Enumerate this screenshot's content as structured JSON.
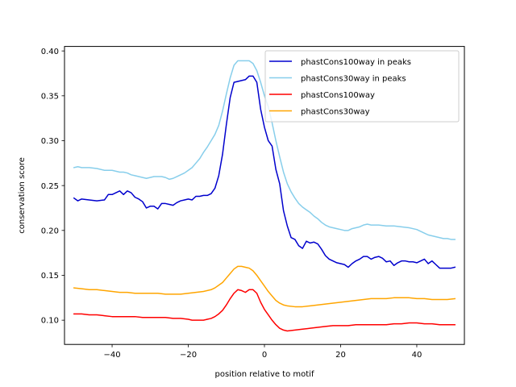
{
  "chart_data": {
    "type": "line",
    "title": "",
    "xlabel": "position relative to motif",
    "ylabel": "conservation score",
    "xlim": [
      -52.5,
      52.5
    ],
    "ylim": [
      0.073,
      0.405
    ],
    "xticks": [
      -40,
      -20,
      0,
      20,
      40
    ],
    "yticks": [
      0.1,
      0.15,
      0.2,
      0.25,
      0.3,
      0.35,
      0.4
    ],
    "xtick_labels": [
      "−40",
      "−20",
      "0",
      "20",
      "40"
    ],
    "ytick_labels": [
      "0.10",
      "0.15",
      "0.20",
      "0.25",
      "0.30",
      "0.35",
      "0.40"
    ],
    "legend_position": "top-right",
    "series": [
      {
        "name": "phastCons100way in peaks",
        "color": "#0000cd",
        "points": [
          [
            -50,
            0.236
          ],
          [
            -49,
            0.233
          ],
          [
            -48,
            0.235
          ],
          [
            -46,
            0.234
          ],
          [
            -44,
            0.233
          ],
          [
            -42,
            0.234
          ],
          [
            -41,
            0.24
          ],
          [
            -40,
            0.24
          ],
          [
            -39,
            0.242
          ],
          [
            -38,
            0.244
          ],
          [
            -37,
            0.24
          ],
          [
            -36,
            0.244
          ],
          [
            -35,
            0.242
          ],
          [
            -34,
            0.237
          ],
          [
            -33,
            0.235
          ],
          [
            -32,
            0.232
          ],
          [
            -31,
            0.225
          ],
          [
            -30,
            0.227
          ],
          [
            -29,
            0.227
          ],
          [
            -28,
            0.224
          ],
          [
            -27,
            0.23
          ],
          [
            -26,
            0.23
          ],
          [
            -25,
            0.229
          ],
          [
            -24,
            0.228
          ],
          [
            -23,
            0.231
          ],
          [
            -22,
            0.233
          ],
          [
            -21,
            0.234
          ],
          [
            -20,
            0.235
          ],
          [
            -19,
            0.234
          ],
          [
            -18,
            0.238
          ],
          [
            -17,
            0.238
          ],
          [
            -16,
            0.239
          ],
          [
            -15,
            0.239
          ],
          [
            -14,
            0.241
          ],
          [
            -13,
            0.247
          ],
          [
            -12,
            0.261
          ],
          [
            -11,
            0.285
          ],
          [
            -10,
            0.318
          ],
          [
            -9,
            0.348
          ],
          [
            -8,
            0.365
          ],
          [
            -7,
            0.366
          ],
          [
            -6,
            0.367
          ],
          [
            -5,
            0.368
          ],
          [
            -4,
            0.372
          ],
          [
            -3,
            0.372
          ],
          [
            -2,
            0.365
          ],
          [
            -1,
            0.335
          ],
          [
            0,
            0.315
          ],
          [
            1,
            0.3
          ],
          [
            2,
            0.294
          ],
          [
            3,
            0.268
          ],
          [
            4,
            0.252
          ],
          [
            5,
            0.222
          ],
          [
            6,
            0.205
          ],
          [
            7,
            0.192
          ],
          [
            8,
            0.19
          ],
          [
            9,
            0.183
          ],
          [
            10,
            0.18
          ],
          [
            11,
            0.188
          ],
          [
            12,
            0.186
          ],
          [
            13,
            0.187
          ],
          [
            14,
            0.185
          ],
          [
            15,
            0.179
          ],
          [
            16,
            0.172
          ],
          [
            17,
            0.168
          ],
          [
            18,
            0.166
          ],
          [
            19,
            0.164
          ],
          [
            20,
            0.163
          ],
          [
            21,
            0.162
          ],
          [
            22,
            0.159
          ],
          [
            23,
            0.163
          ],
          [
            24,
            0.166
          ],
          [
            25,
            0.168
          ],
          [
            26,
            0.171
          ],
          [
            27,
            0.171
          ],
          [
            28,
            0.168
          ],
          [
            29,
            0.17
          ],
          [
            30,
            0.171
          ],
          [
            31,
            0.169
          ],
          [
            32,
            0.165
          ],
          [
            33,
            0.166
          ],
          [
            34,
            0.161
          ],
          [
            35,
            0.164
          ],
          [
            36,
            0.166
          ],
          [
            37,
            0.166
          ],
          [
            38,
            0.165
          ],
          [
            39,
            0.165
          ],
          [
            40,
            0.164
          ],
          [
            41,
            0.166
          ],
          [
            42,
            0.168
          ],
          [
            43,
            0.163
          ],
          [
            44,
            0.166
          ],
          [
            45,
            0.162
          ],
          [
            46,
            0.158
          ],
          [
            47,
            0.158
          ],
          [
            48,
            0.158
          ],
          [
            49,
            0.158
          ],
          [
            50,
            0.159
          ]
        ]
      },
      {
        "name": "phastCons30way in peaks",
        "color": "#87ceeb",
        "points": [
          [
            -50,
            0.27
          ],
          [
            -49,
            0.271
          ],
          [
            -48,
            0.27
          ],
          [
            -46,
            0.27
          ],
          [
            -44,
            0.269
          ],
          [
            -42,
            0.267
          ],
          [
            -40,
            0.267
          ],
          [
            -39,
            0.266
          ],
          [
            -38,
            0.265
          ],
          [
            -37,
            0.265
          ],
          [
            -36,
            0.264
          ],
          [
            -35,
            0.262
          ],
          [
            -34,
            0.261
          ],
          [
            -33,
            0.26
          ],
          [
            -32,
            0.259
          ],
          [
            -31,
            0.258
          ],
          [
            -30,
            0.259
          ],
          [
            -29,
            0.26
          ],
          [
            -28,
            0.26
          ],
          [
            -27,
            0.26
          ],
          [
            -26,
            0.259
          ],
          [
            -25,
            0.257
          ],
          [
            -24,
            0.258
          ],
          [
            -23,
            0.26
          ],
          [
            -22,
            0.262
          ],
          [
            -21,
            0.264
          ],
          [
            -20,
            0.267
          ],
          [
            -19,
            0.27
          ],
          [
            -18,
            0.275
          ],
          [
            -17,
            0.28
          ],
          [
            -16,
            0.287
          ],
          [
            -15,
            0.293
          ],
          [
            -14,
            0.3
          ],
          [
            -13,
            0.307
          ],
          [
            -12,
            0.317
          ],
          [
            -11,
            0.333
          ],
          [
            -10,
            0.352
          ],
          [
            -9,
            0.37
          ],
          [
            -8,
            0.384
          ],
          [
            -7,
            0.389
          ],
          [
            -6,
            0.389
          ],
          [
            -5,
            0.389
          ],
          [
            -4,
            0.389
          ],
          [
            -3,
            0.386
          ],
          [
            -2,
            0.378
          ],
          [
            -1,
            0.365
          ],
          [
            0,
            0.35
          ],
          [
            1,
            0.338
          ],
          [
            2,
            0.32
          ],
          [
            3,
            0.3
          ],
          [
            4,
            0.282
          ],
          [
            5,
            0.265
          ],
          [
            6,
            0.252
          ],
          [
            7,
            0.243
          ],
          [
            8,
            0.236
          ],
          [
            9,
            0.23
          ],
          [
            10,
            0.226
          ],
          [
            11,
            0.223
          ],
          [
            12,
            0.22
          ],
          [
            13,
            0.216
          ],
          [
            14,
            0.213
          ],
          [
            15,
            0.209
          ],
          [
            16,
            0.206
          ],
          [
            17,
            0.204
          ],
          [
            18,
            0.203
          ],
          [
            19,
            0.202
          ],
          [
            20,
            0.201
          ],
          [
            21,
            0.2
          ],
          [
            22,
            0.2
          ],
          [
            23,
            0.202
          ],
          [
            24,
            0.203
          ],
          [
            25,
            0.204
          ],
          [
            26,
            0.206
          ],
          [
            27,
            0.207
          ],
          [
            28,
            0.206
          ],
          [
            30,
            0.206
          ],
          [
            32,
            0.205
          ],
          [
            34,
            0.205
          ],
          [
            36,
            0.204
          ],
          [
            38,
            0.203
          ],
          [
            40,
            0.201
          ],
          [
            41,
            0.199
          ],
          [
            42,
            0.197
          ],
          [
            43,
            0.195
          ],
          [
            44,
            0.194
          ],
          [
            45,
            0.193
          ],
          [
            46,
            0.192
          ],
          [
            47,
            0.191
          ],
          [
            48,
            0.191
          ],
          [
            49,
            0.19
          ],
          [
            50,
            0.19
          ]
        ]
      },
      {
        "name": "phastCons100way",
        "color": "#ff0000",
        "points": [
          [
            -50,
            0.107
          ],
          [
            -48,
            0.107
          ],
          [
            -46,
            0.106
          ],
          [
            -44,
            0.106
          ],
          [
            -42,
            0.105
          ],
          [
            -40,
            0.104
          ],
          [
            -38,
            0.104
          ],
          [
            -36,
            0.104
          ],
          [
            -34,
            0.104
          ],
          [
            -32,
            0.103
          ],
          [
            -30,
            0.103
          ],
          [
            -28,
            0.103
          ],
          [
            -26,
            0.103
          ],
          [
            -24,
            0.102
          ],
          [
            -22,
            0.102
          ],
          [
            -20,
            0.101
          ],
          [
            -19,
            0.1
          ],
          [
            -18,
            0.1
          ],
          [
            -17,
            0.1
          ],
          [
            -16,
            0.1
          ],
          [
            -15,
            0.101
          ],
          [
            -14,
            0.102
          ],
          [
            -13,
            0.104
          ],
          [
            -12,
            0.107
          ],
          [
            -11,
            0.111
          ],
          [
            -10,
            0.117
          ],
          [
            -9,
            0.124
          ],
          [
            -8,
            0.13
          ],
          [
            -7,
            0.134
          ],
          [
            -6,
            0.133
          ],
          [
            -5,
            0.131
          ],
          [
            -4,
            0.134
          ],
          [
            -3,
            0.134
          ],
          [
            -2,
            0.13
          ],
          [
            -1,
            0.12
          ],
          [
            0,
            0.112
          ],
          [
            1,
            0.106
          ],
          [
            2,
            0.1
          ],
          [
            3,
            0.095
          ],
          [
            4,
            0.091
          ],
          [
            5,
            0.089
          ],
          [
            6,
            0.088
          ],
          [
            8,
            0.089
          ],
          [
            10,
            0.09
          ],
          [
            12,
            0.091
          ],
          [
            14,
            0.092
          ],
          [
            16,
            0.093
          ],
          [
            18,
            0.094
          ],
          [
            20,
            0.094
          ],
          [
            22,
            0.094
          ],
          [
            24,
            0.095
          ],
          [
            26,
            0.095
          ],
          [
            28,
            0.095
          ],
          [
            30,
            0.095
          ],
          [
            32,
            0.095
          ],
          [
            34,
            0.096
          ],
          [
            36,
            0.096
          ],
          [
            38,
            0.097
          ],
          [
            40,
            0.097
          ],
          [
            42,
            0.096
          ],
          [
            44,
            0.096
          ],
          [
            46,
            0.095
          ],
          [
            48,
            0.095
          ],
          [
            50,
            0.095
          ]
        ]
      },
      {
        "name": "phastCons30way",
        "color": "#ffa500",
        "points": [
          [
            -50,
            0.136
          ],
          [
            -48,
            0.135
          ],
          [
            -46,
            0.134
          ],
          [
            -44,
            0.134
          ],
          [
            -42,
            0.133
          ],
          [
            -40,
            0.132
          ],
          [
            -38,
            0.131
          ],
          [
            -36,
            0.131
          ],
          [
            -34,
            0.13
          ],
          [
            -32,
            0.13
          ],
          [
            -30,
            0.13
          ],
          [
            -28,
            0.13
          ],
          [
            -26,
            0.129
          ],
          [
            -24,
            0.129
          ],
          [
            -22,
            0.129
          ],
          [
            -20,
            0.13
          ],
          [
            -18,
            0.131
          ],
          [
            -16,
            0.132
          ],
          [
            -14,
            0.134
          ],
          [
            -13,
            0.136
          ],
          [
            -12,
            0.139
          ],
          [
            -11,
            0.142
          ],
          [
            -10,
            0.147
          ],
          [
            -9,
            0.152
          ],
          [
            -8,
            0.157
          ],
          [
            -7,
            0.16
          ],
          [
            -6,
            0.16
          ],
          [
            -5,
            0.159
          ],
          [
            -4,
            0.158
          ],
          [
            -3,
            0.155
          ],
          [
            -2,
            0.15
          ],
          [
            -1,
            0.144
          ],
          [
            0,
            0.138
          ],
          [
            1,
            0.132
          ],
          [
            2,
            0.127
          ],
          [
            3,
            0.122
          ],
          [
            4,
            0.119
          ],
          [
            5,
            0.117
          ],
          [
            6,
            0.116
          ],
          [
            8,
            0.115
          ],
          [
            10,
            0.115
          ],
          [
            12,
            0.116
          ],
          [
            14,
            0.117
          ],
          [
            16,
            0.118
          ],
          [
            18,
            0.119
          ],
          [
            20,
            0.12
          ],
          [
            22,
            0.121
          ],
          [
            24,
            0.122
          ],
          [
            26,
            0.123
          ],
          [
            28,
            0.124
          ],
          [
            30,
            0.124
          ],
          [
            32,
            0.124
          ],
          [
            34,
            0.125
          ],
          [
            36,
            0.125
          ],
          [
            38,
            0.125
          ],
          [
            40,
            0.124
          ],
          [
            42,
            0.124
          ],
          [
            44,
            0.123
          ],
          [
            46,
            0.123
          ],
          [
            48,
            0.123
          ],
          [
            50,
            0.124
          ]
        ]
      }
    ]
  }
}
